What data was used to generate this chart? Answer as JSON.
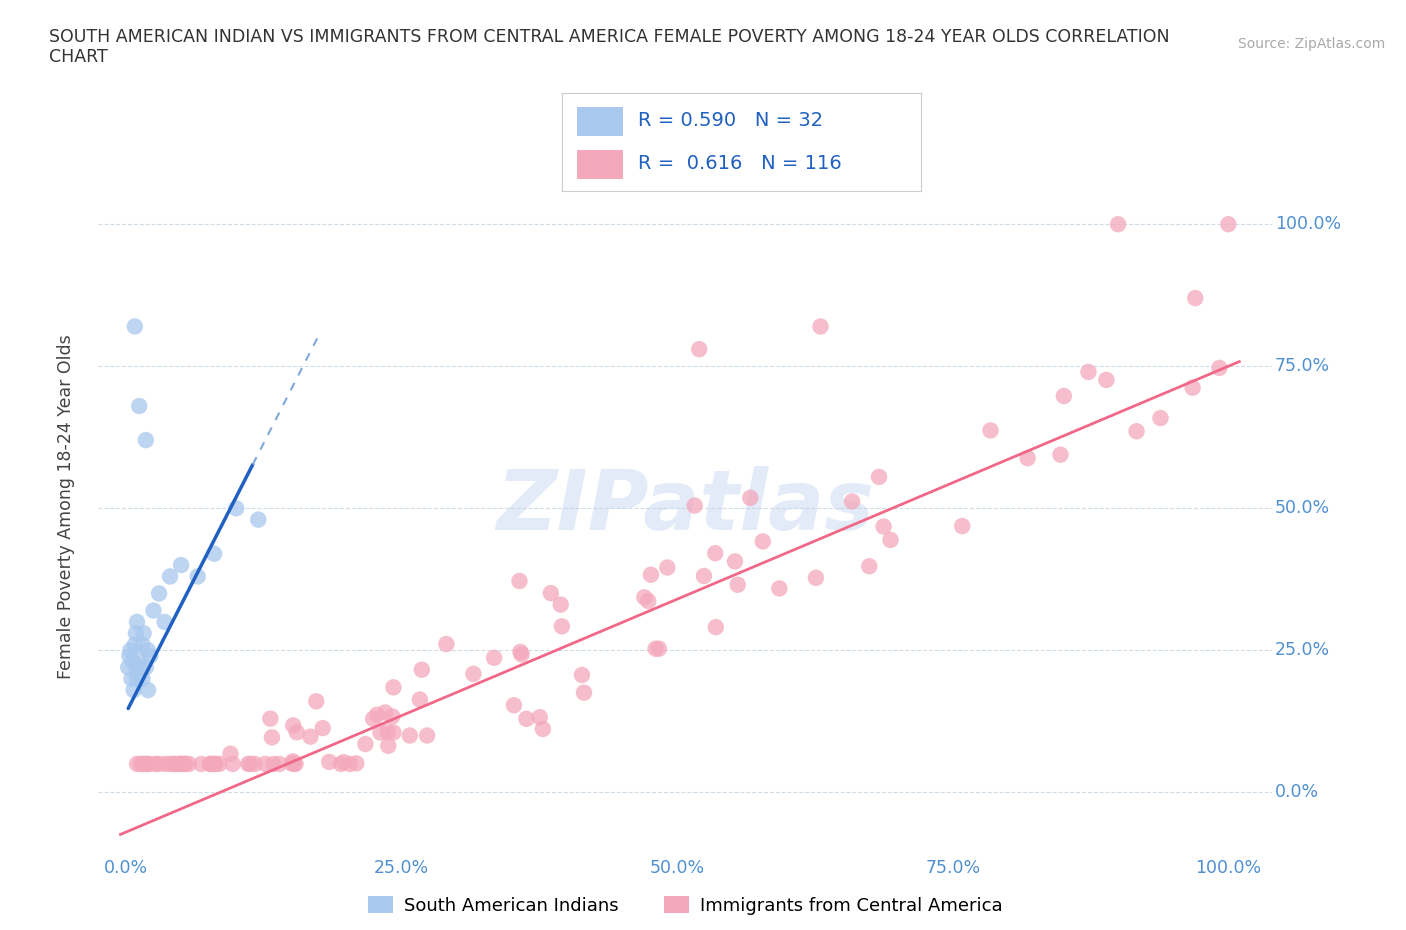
{
  "title_line1": "SOUTH AMERICAN INDIAN VS IMMIGRANTS FROM CENTRAL AMERICA FEMALE POVERTY AMONG 18-24 YEAR OLDS CORRELATION",
  "title_line2": "CHART",
  "source_text": "Source: ZipAtlas.com",
  "ylabel": "Female Poverty Among 18-24 Year Olds",
  "blue_R": "0.590",
  "blue_N": "32",
  "pink_R": "0.616",
  "pink_N": "116",
  "blue_dot_color": "#A8C8EE",
  "pink_dot_color": "#F4A8BC",
  "blue_line_color": "#2060C0",
  "blue_dash_color": "#80A8D8",
  "pink_line_color": "#F06888",
  "watermark": "ZIPatlas",
  "legend_label_blue": "South American Indians",
  "legend_label_pink": "Immigrants from Central America",
  "xtick_labels": [
    "0.0%",
    "25.0%",
    "50.0%",
    "75.0%",
    "100.0%"
  ],
  "ytick_labels": [
    "0.0%",
    "25.0%",
    "50.0%",
    "75.0%",
    "100.0%"
  ],
  "tick_color": "#5090D0",
  "grid_color": "#D0DCE8",
  "legend_text_color": "#2060C0",
  "title_color": "#333333"
}
